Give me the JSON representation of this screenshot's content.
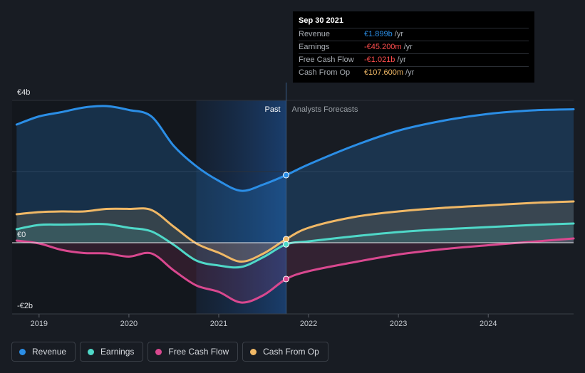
{
  "tooltip": {
    "date": "Sep 30 2021",
    "rows": [
      {
        "name": "Revenue",
        "value": "€1.899b",
        "unit": "/yr",
        "color": "#2b8ee6"
      },
      {
        "name": "Earnings",
        "value": "-€45.200m",
        "unit": "/yr",
        "color": "#ff4d4d"
      },
      {
        "name": "Free Cash Flow",
        "value": "-€1.021b",
        "unit": "/yr",
        "color": "#ff4d4d"
      },
      {
        "name": "Cash From Op",
        "value": "€107.600m",
        "unit": "/yr",
        "color": "#f0b866"
      }
    ]
  },
  "regions": {
    "past": "Past",
    "forecast": "Analysts Forecasts"
  },
  "legend": [
    {
      "label": "Revenue",
      "color": "#2b8ee6"
    },
    {
      "label": "Earnings",
      "color": "#4fd8c8"
    },
    {
      "label": "Free Cash Flow",
      "color": "#d9488f"
    },
    {
      "label": "Cash From Op",
      "color": "#f0b866"
    }
  ],
  "chart_data": {
    "type": "area",
    "y_tick_labels": [
      "€4b",
      "€0",
      "-€2b"
    ],
    "x_tick_labels": [
      "2019",
      "2020",
      "2021",
      "2022",
      "2023",
      "2024"
    ],
    "ylim": [
      -2.0,
      4.0
    ],
    "xlim": [
      2018.7,
      2024.95
    ],
    "past_end": 2021.75,
    "highlight_start": 2020.75,
    "series": [
      {
        "name": "Revenue",
        "color": "#2b8ee6",
        "x": [
          2018.75,
          2019.0,
          2019.25,
          2019.5,
          2019.75,
          2020.0,
          2020.25,
          2020.5,
          2020.75,
          2021.0,
          2021.25,
          2021.5,
          2021.75,
          2022.0,
          2022.5,
          2023.0,
          2023.5,
          2024.0,
          2024.5,
          2024.95
        ],
        "y": [
          3.32,
          3.55,
          3.67,
          3.8,
          3.84,
          3.73,
          3.55,
          2.72,
          2.15,
          1.74,
          1.46,
          1.64,
          1.9,
          2.2,
          2.72,
          3.15,
          3.43,
          3.62,
          3.72,
          3.75
        ]
      },
      {
        "name": "Earnings",
        "color": "#4fd8c8",
        "x": [
          2018.75,
          2019.0,
          2019.25,
          2019.5,
          2019.75,
          2020.0,
          2020.25,
          2020.5,
          2020.75,
          2021.0,
          2021.25,
          2021.5,
          2021.75,
          2022.0,
          2022.5,
          2023.0,
          2023.5,
          2024.0,
          2024.5,
          2024.95
        ],
        "y": [
          0.38,
          0.5,
          0.51,
          0.52,
          0.52,
          0.42,
          0.32,
          -0.06,
          -0.5,
          -0.64,
          -0.68,
          -0.4,
          -0.045,
          0.04,
          0.18,
          0.3,
          0.38,
          0.44,
          0.5,
          0.54
        ]
      },
      {
        "name": "Free Cash Flow",
        "color": "#d9488f",
        "x": [
          2018.75,
          2019.0,
          2019.25,
          2019.5,
          2019.75,
          2020.0,
          2020.25,
          2020.5,
          2020.75,
          2021.0,
          2021.25,
          2021.5,
          2021.75,
          2022.0,
          2022.5,
          2023.0,
          2023.5,
          2024.0,
          2024.5,
          2024.95
        ],
        "y": [
          0.06,
          -0.02,
          -0.2,
          -0.29,
          -0.3,
          -0.39,
          -0.3,
          -0.78,
          -1.2,
          -1.38,
          -1.68,
          -1.47,
          -1.02,
          -0.8,
          -0.55,
          -0.33,
          -0.18,
          -0.07,
          0.03,
          0.12
        ]
      },
      {
        "name": "Cash From Op",
        "color": "#f0b866",
        "x": [
          2018.75,
          2019.0,
          2019.25,
          2019.5,
          2019.75,
          2020.0,
          2020.25,
          2020.5,
          2020.75,
          2021.0,
          2021.25,
          2021.5,
          2021.75,
          2022.0,
          2022.5,
          2023.0,
          2023.5,
          2024.0,
          2024.5,
          2024.95
        ],
        "y": [
          0.8,
          0.86,
          0.88,
          0.88,
          0.95,
          0.95,
          0.92,
          0.45,
          -0.02,
          -0.28,
          -0.53,
          -0.3,
          0.1,
          0.42,
          0.72,
          0.88,
          0.98,
          1.05,
          1.12,
          1.16
        ]
      }
    ]
  }
}
